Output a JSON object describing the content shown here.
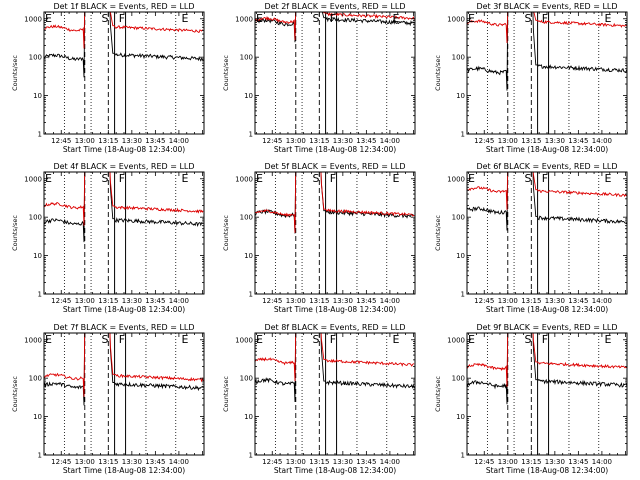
{
  "chart_data": {
    "type": "line",
    "x_unit": "time of day (hh:mm), 18-Aug-08",
    "shared": {
      "xlabel": "Start Time (18-Aug-08 12:34:00)",
      "ylabel": "Counts/sec",
      "xtick_labels": [
        "12:45",
        "13:00",
        "13:15",
        "13:30",
        "13:45",
        "14:00"
      ],
      "xlim": [
        "12:34",
        "14:16"
      ],
      "ylim": [
        1,
        1500
      ],
      "y_scale": "log",
      "ytick_labels": [
        "1",
        "10",
        "100",
        "1000"
      ],
      "grid": false,
      "marker_labels": [
        "E",
        "S",
        "F",
        "E"
      ],
      "marker_times": [
        "12:34",
        "13:10",
        "13:21",
        "14:01"
      ],
      "dotted_lines": [
        "12:47",
        "13:04",
        "13:39",
        "13:58"
      ],
      "dashed_lines": [
        "13:00",
        "13:15"
      ],
      "solid_lines": [
        "13:19",
        "13:26"
      ]
    },
    "panels": [
      {
        "title": "Det 1f BLACK = Events, RED = LLD",
        "black_before": 100,
        "black_after": 90,
        "red_before": 560,
        "red_after": 470
      },
      {
        "title": "Det 2f BLACK = Events, RED = LLD",
        "black_before": 820,
        "black_after": 760,
        "red_before": 930,
        "red_after": 1020
      },
      {
        "title": "Det 3f BLACK = Events, RED = LLD",
        "black_before": 45,
        "black_after": 45,
        "red_before": 780,
        "red_after": 650
      },
      {
        "title": "Det 4f BLACK = Events, RED = LLD",
        "black_before": 75,
        "black_after": 65,
        "red_before": 200,
        "red_after": 140
      },
      {
        "title": "Det 5f BLACK = Events, RED = LLD",
        "black_before": 125,
        "black_after": 105,
        "red_before": 130,
        "red_after": 115
      },
      {
        "title": "Det 6f BLACK = Events, RED = LLD",
        "black_before": 150,
        "black_after": 75,
        "red_before": 520,
        "red_after": 370
      },
      {
        "title": "Det 7f BLACK = Events, RED = LLD",
        "black_before": 65,
        "black_after": 55,
        "red_before": 110,
        "red_after": 90
      },
      {
        "title": "Det 8f BLACK = Events, RED = LLD",
        "black_before": 80,
        "black_after": 60,
        "red_before": 280,
        "red_after": 220
      },
      {
        "title": "Det 9f BLACK = Events, RED = LLD",
        "black_before": 70,
        "black_after": 65,
        "red_before": 200,
        "red_after": 190
      }
    ],
    "colors": {
      "events": "#000000",
      "lld": "#dd0000",
      "background": "#ffffff"
    }
  }
}
